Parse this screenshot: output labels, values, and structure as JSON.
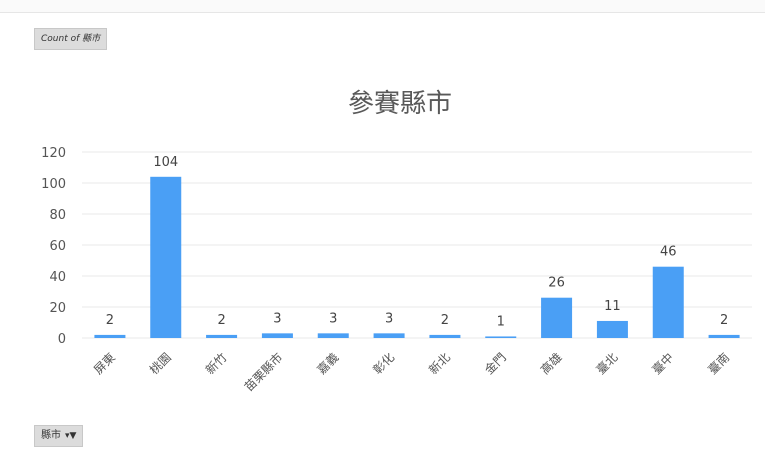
{
  "pivot": {
    "field_button_label": "Count of 縣市",
    "filter_button_label": "縣市",
    "filter_icon": "filter-dropdown-icon"
  },
  "colors": {
    "bar": "#4a9ff5",
    "grid": "#e8e8e8",
    "axis_text": "#555555",
    "title_text": "#595959"
  },
  "chart_data": {
    "type": "bar",
    "title": "參賽縣市",
    "xlabel": "",
    "ylabel": "",
    "ylim": [
      0,
      120
    ],
    "yticks": [
      0,
      20,
      40,
      60,
      80,
      100,
      120
    ],
    "grid": true,
    "legend": "none",
    "categories": [
      "屏東",
      "桃園",
      "新竹",
      "苗栗縣市",
      "嘉義",
      "彰化",
      "新北",
      "金門",
      "高雄",
      "臺北",
      "臺中",
      "臺南"
    ],
    "values": [
      2,
      104,
      2,
      3,
      3,
      3,
      2,
      1,
      26,
      11,
      46,
      2
    ]
  }
}
